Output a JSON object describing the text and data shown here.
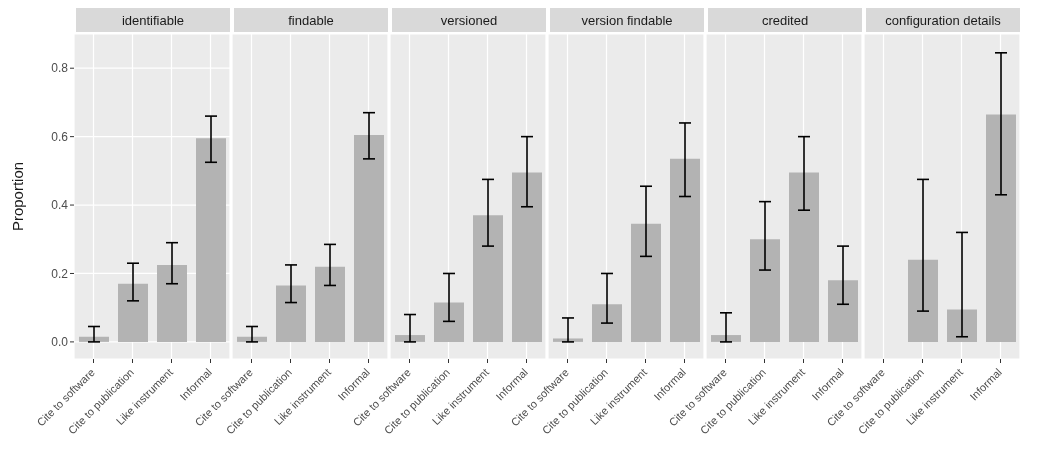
{
  "chart_data": [
    {
      "type": "bar",
      "title": "identifiable",
      "ylabel": "Proportion",
      "categories": [
        "Cite to software",
        "Cite to publication",
        "Like instrument",
        "Informal"
      ],
      "values": [
        0.015,
        0.17,
        0.225,
        0.595
      ],
      "errors": [
        [
          0.0,
          0.045
        ],
        [
          0.12,
          0.23
        ],
        [
          0.17,
          0.29
        ],
        [
          0.525,
          0.66
        ]
      ],
      "color": "#b3b3b3",
      "ylim": [
        -0.05,
        0.9
      ],
      "yticks": [
        {
          "value": 0,
          "label": "0.0"
        },
        0.2,
        0.4,
        0.6,
        0.8
      ],
      "grid": true
    },
    {
      "type": "bar",
      "title": "findable",
      "categories": [
        "Cite to software",
        "Cite to publication",
        "Like instrument",
        "Informal"
      ],
      "values": [
        0.015,
        0.165,
        0.22,
        0.605
      ],
      "errors": [
        [
          0.0,
          0.045
        ],
        [
          0.115,
          0.225
        ],
        [
          0.165,
          0.285
        ],
        [
          0.535,
          0.67
        ]
      ],
      "color": "#b3b3b3",
      "ylim": [
        -0.05,
        0.9
      ],
      "yticks": [
        0.0,
        0.2,
        0.4,
        0.6,
        0.8
      ],
      "grid": true,
      "tick_labels": "x"
    },
    {
      "type": "bar",
      "title": "versioned",
      "categories": [
        "Cite to software",
        "Cite to publication",
        "Like instrument",
        "Informal"
      ],
      "values": [
        0.02,
        0.115,
        0.37,
        0.495
      ],
      "errors": [
        [
          0.0,
          0.08
        ],
        [
          0.06,
          0.2
        ],
        [
          0.28,
          0.475
        ],
        [
          0.395,
          0.6
        ]
      ],
      "color": "#b3b3b3",
      "ylim": [
        -0.05,
        0.9
      ],
      "yticks": [
        0.0,
        0.2,
        0.4,
        0.6,
        0.8
      ],
      "grid": true,
      "tick_labels": "x"
    },
    {
      "type": "bar",
      "title": "version findable",
      "categories": [
        "Cite to software",
        "Cite to publication",
        "Like instrument",
        "Informal"
      ],
      "values": [
        0.01,
        0.11,
        0.345,
        0.535
      ],
      "errors": [
        [
          0.0,
          0.07
        ],
        [
          0.055,
          0.2
        ],
        [
          0.25,
          0.455
        ],
        [
          0.425,
          0.64
        ]
      ],
      "color": "#b3b3b3",
      "ylim": [
        -0.05,
        0.9
      ],
      "yticks": [
        0.0,
        0.2,
        0.4,
        0.6,
        0.8
      ],
      "grid": true,
      "tick_labels": "x"
    },
    {
      "type": "bar",
      "title": "credited",
      "categories": [
        "Cite to software",
        "Cite to publication",
        "Like instrument",
        "Informal"
      ],
      "values": [
        0.02,
        0.3,
        0.495,
        0.18
      ],
      "errors": [
        [
          0.0,
          0.085
        ],
        [
          0.21,
          0.41
        ],
        [
          0.385,
          0.6
        ],
        [
          0.11,
          0.28
        ]
      ],
      "color": "#b3b3b3",
      "ylim": [
        -0.05,
        0.9
      ],
      "yticks": [
        0.0,
        0.2,
        0.4,
        0.6,
        0.8
      ],
      "grid": true,
      "tick_labels": "x"
    },
    {
      "type": "bar",
      "title": "configuration details",
      "categories": [
        "Cite to software",
        "Cite to publication",
        "Like instrument",
        "Informal"
      ],
      "values": [
        null,
        0.24,
        0.095,
        0.665
      ],
      "errors": [
        null,
        [
          0.09,
          0.475
        ],
        [
          0.015,
          0.32
        ],
        [
          0.43,
          0.845
        ]
      ],
      "color": "#b3b3b3",
      "ylim": [
        -0.05,
        0.9
      ],
      "yticks": [
        0.0,
        0.2,
        0.4,
        0.6,
        0.8
      ],
      "grid": true,
      "tick_labels": "x"
    }
  ]
}
